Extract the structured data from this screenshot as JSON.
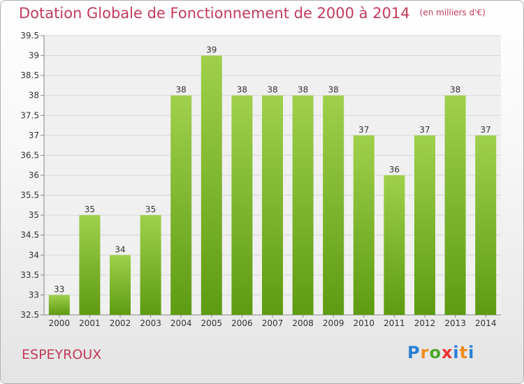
{
  "title": "Dotation Globale de Fonctionnement de 2000 à 2014",
  "unit": "(en milliers d'€)",
  "commune": "ESPEYROUX",
  "logo_text": "Proxiti",
  "colors": {
    "title": "#c33a5a",
    "bar_top": "#9fd04c",
    "bar_bottom": "#5e9b12",
    "grid": "#d6d6d6"
  },
  "chart_data": {
    "type": "bar",
    "title": "Dotation Globale de Fonctionnement de 2000 à 2014",
    "xlabel": "",
    "ylabel": "",
    "categories": [
      "2000",
      "2001",
      "2002",
      "2003",
      "2004",
      "2005",
      "2006",
      "2007",
      "2008",
      "2009",
      "2010",
      "2011",
      "2012",
      "2013",
      "2014"
    ],
    "values": [
      33,
      35,
      34,
      35,
      38,
      39,
      38,
      38,
      38,
      38,
      37,
      36,
      37,
      38,
      37
    ],
    "labels": [
      "33",
      "35",
      "34",
      "35",
      "38",
      "39",
      "38",
      "38",
      "38",
      "38",
      "37",
      "36",
      "37",
      "38",
      "37"
    ],
    "ylim": [
      32.5,
      39.5
    ],
    "yticks": [
      32.5,
      33,
      33.5,
      34,
      34.5,
      35,
      35.5,
      36,
      36.5,
      37,
      37.5,
      38,
      38.5,
      39,
      39.5
    ],
    "ytick_labels": [
      "32.5",
      "33",
      "33.5",
      "34",
      "34.5",
      "35",
      "35.5",
      "36",
      "36.5",
      "37",
      "37.5",
      "38",
      "38.5",
      "39",
      "39.5"
    ],
    "grid": true,
    "legend": "none"
  }
}
